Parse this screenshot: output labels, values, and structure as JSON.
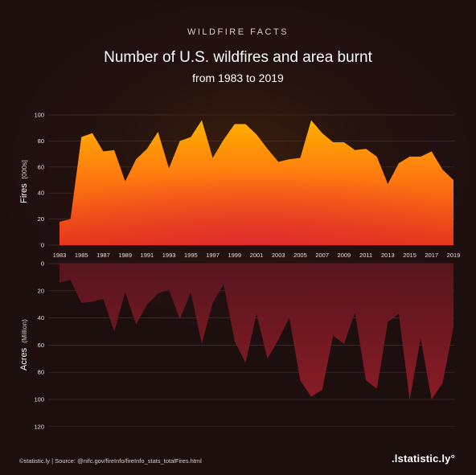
{
  "header": {
    "kicker": "WILDFIRE FACTS",
    "title": "Number of U.S. wildfires and area burnt",
    "subtitle": "from 1983 to 2019"
  },
  "footer": {
    "source": "©statistic.ly | Source: @nifc.gov/fireInfo/fireInfo_stats_totalFires.html",
    "brand": ".lstatistic.ly°"
  },
  "colors": {
    "fires_top": "#ffb000",
    "fires_mid": "#ff7a10",
    "fires_bottom": "#e8381a",
    "acres_top": "#5a1620",
    "acres_bottom": "#8e1c25",
    "grid": "#4a2e2a",
    "tick_text": "#e8dcd6"
  },
  "chart_data": {
    "type": "area",
    "x_tick_labels": [
      "1983",
      "1985",
      "1987",
      "1989",
      "1991",
      "1993",
      "1995",
      "1997",
      "1999",
      "2001",
      "2003",
      "2005",
      "2007",
      "2009",
      "2011",
      "2013",
      "2015",
      "2017",
      "2019"
    ],
    "x": [
      1983,
      1984,
      1985,
      1986,
      1987,
      1988,
      1989,
      1990,
      1991,
      1992,
      1993,
      1994,
      1995,
      1996,
      1997,
      1998,
      1999,
      2000,
      2001,
      2002,
      2003,
      2004,
      2005,
      2006,
      2007,
      2008,
      2009,
      2010,
      2011,
      2012,
      2013,
      2014,
      2015,
      2016,
      2017,
      2018,
      2019
    ],
    "fires": {
      "axis_label": "Fires",
      "axis_unit": "[000s]",
      "ylim": [
        0,
        100
      ],
      "y_ticks": [
        "0",
        "20",
        "40",
        "60",
        "80",
        "100"
      ],
      "values": [
        18,
        20,
        83,
        86,
        72,
        73,
        49,
        66,
        74,
        87,
        59,
        80,
        83,
        96,
        67,
        81,
        93,
        93,
        85,
        74,
        64,
        66,
        67,
        96,
        86,
        79,
        79,
        73,
        74,
        68,
        47,
        63,
        68,
        68,
        72,
        58,
        50
      ]
    },
    "acres": {
      "axis_label": "Acres",
      "axis_unit": "(Million)",
      "ylim": [
        0,
        120
      ],
      "y_ticks": [
        "0",
        "20",
        "40",
        "60",
        "80",
        "100",
        "120"
      ],
      "values": [
        14,
        12,
        29,
        28,
        26,
        50,
        21,
        45,
        30,
        22,
        19,
        41,
        21,
        59,
        29,
        15,
        57,
        73,
        37,
        70,
        56,
        40,
        86,
        98,
        93,
        53,
        59,
        36,
        86,
        92,
        43,
        37,
        100,
        55,
        100,
        88,
        47
      ]
    }
  }
}
